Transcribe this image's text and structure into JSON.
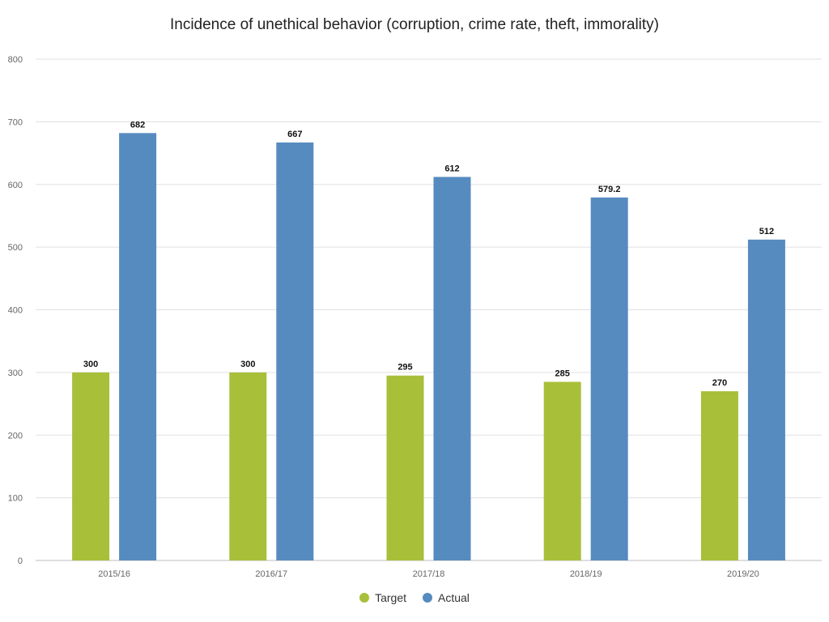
{
  "chart_data": {
    "type": "bar",
    "title": "Incidence of unethical behavior (corruption, crime rate, theft, immorality)",
    "xlabel": "",
    "ylabel": "",
    "categories": [
      "2015/16",
      "2016/17",
      "2017/18",
      "2018/19",
      "2019/20"
    ],
    "series": [
      {
        "name": "Target",
        "values": [
          300,
          300,
          295,
          285,
          270
        ],
        "value_labels": [
          "300",
          "300",
          "295",
          "285",
          "270"
        ],
        "color": "#a8bf3a"
      },
      {
        "name": "Actual",
        "values": [
          682,
          667,
          612,
          579.2,
          512
        ],
        "value_labels": [
          "682",
          "667",
          "612",
          "579.2",
          "512"
        ],
        "color": "#568bbf"
      }
    ],
    "ylim": [
      0,
      800
    ],
    "yticks": [
      "0",
      "100",
      "200",
      "300",
      "400",
      "500",
      "600",
      "700",
      "800"
    ],
    "grid": true,
    "legend_position": "bottom-center"
  },
  "colors": {
    "gridline": "#e0e0e0",
    "axis_text": "#666666",
    "data_label": "#111111"
  }
}
